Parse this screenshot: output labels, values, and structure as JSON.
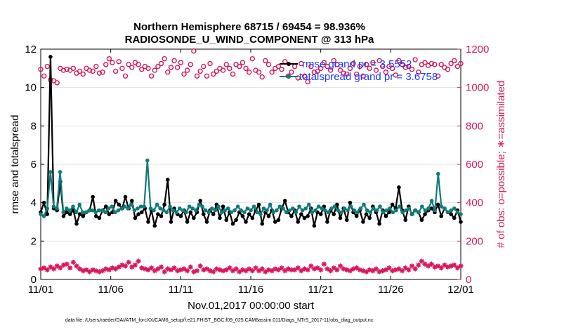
{
  "colors": {
    "rmse": "#000000",
    "spread": "#117a7a",
    "obs": "#d6185c",
    "grid": "#e3e3e3",
    "legend_text": "#1a3cff"
  },
  "chart_data": {
    "type": "line",
    "title": "Northern Hemisphere 68715 / 69454 = 98.936%",
    "subtitle": "RADIOSONDE_U_WIND_COMPONENT @ 313 hPa",
    "xlabel": "Nov.01,2017 00:00:00 start",
    "ylabel_left": "rmse and totalspread",
    "ylabel_right": "# of obs: o=possible; ∗=assimilated",
    "x_ticks": [
      "11/01",
      "11/06",
      "11/11",
      "11/16",
      "11/21",
      "11/26",
      "12/01"
    ],
    "y_left_ticks": [
      "0",
      "2",
      "4",
      "6",
      "8",
      "10",
      "12"
    ],
    "y_right_ticks": [
      "0",
      "200",
      "400",
      "600",
      "800",
      "1000",
      "1200"
    ],
    "xlim": [
      0,
      30
    ],
    "ylim_left": [
      0,
      12
    ],
    "ylim_right": [
      0,
      1200
    ],
    "footnote": "data file: /Users/raeder/DAI/ATM_forcXX/CAM6_setup/f.e21.FHIST_BGC.f09_025.CAM6assim.011/Diags_NTrS_2017-11/obs_diag_output.nc",
    "legend": [
      {
        "label": "rmse grand pr = 3.5552",
        "series": "rmse"
      },
      {
        "label": "totalspread grand pr = 3.6758",
        "series": "totalspread"
      }
    ],
    "series": [
      {
        "name": "rmse",
        "axis": "left",
        "marker": "filled-circle",
        "values": [
          3.5,
          4.0,
          3.4,
          11.6,
          3.7,
          3.6,
          5.1,
          3.3,
          3.5,
          3.4,
          3.6,
          2.9,
          3.4,
          3.3,
          3.5,
          3.6,
          4.3,
          3.3,
          3.2,
          3.6,
          3.8,
          3.4,
          3.5,
          4.1,
          3.9,
          3.7,
          4.3,
          3.7,
          4.1,
          3.2,
          3.4,
          3.5,
          3.7,
          3.0,
          3.6,
          2.8,
          3.4,
          3.3,
          3.9,
          5.2,
          3.0,
          3.7,
          3.4,
          3.3,
          3.6,
          3.0,
          3.5,
          3.2,
          3.5,
          4.1,
          3.4,
          3.0,
          3.6,
          3.4,
          3.9,
          3.2,
          3.8,
          3.1,
          3.5,
          2.9,
          3.1,
          3.5,
          3.3,
          3.0,
          3.4,
          3.2,
          3.6,
          3.9,
          2.9,
          3.5,
          3.3,
          3.6,
          3.0,
          3.1,
          3.7,
          4.1,
          3.5,
          3.3,
          3.6,
          3.0,
          3.4,
          3.2,
          3.3,
          3.7,
          2.8,
          3.5,
          3.4,
          3.8,
          3.0,
          3.6,
          3.4,
          3.9,
          3.2,
          3.7,
          3.1,
          4.0,
          3.5,
          3.3,
          3.6,
          3.0,
          3.4,
          3.2,
          3.8,
          3.5,
          2.9,
          3.6,
          3.3,
          3.5,
          3.9,
          3.7,
          4.8,
          3.6,
          3.1,
          3.8,
          3.4,
          3.6,
          3.5,
          3.1,
          3.4,
          3.6,
          3.7,
          3.5,
          3.9,
          3.3,
          3.7,
          3.5,
          3.4,
          3.2,
          3.6,
          3.0
        ]
      },
      {
        "name": "totalspread",
        "axis": "left",
        "marker": "filled-circle",
        "values": [
          3.4,
          3.3,
          3.7,
          5.6,
          3.8,
          3.7,
          5.6,
          3.5,
          3.7,
          3.6,
          3.8,
          3.5,
          3.9,
          3.5,
          3.5,
          3.6,
          3.6,
          3.5,
          3.6,
          3.6,
          3.5,
          3.7,
          3.8,
          3.5,
          3.6,
          3.7,
          3.8,
          3.7,
          3.9,
          3.6,
          3.7,
          3.8,
          3.8,
          6.2,
          3.7,
          3.6,
          3.9,
          3.7,
          3.6,
          3.5,
          3.8,
          3.6,
          3.5,
          3.7,
          3.6,
          3.5,
          3.8,
          3.7,
          3.6,
          3.9,
          3.8,
          3.6,
          3.5,
          3.7,
          3.6,
          3.8,
          3.5,
          3.6,
          3.7,
          3.5,
          3.6,
          3.8,
          3.6,
          3.5,
          3.7,
          3.6,
          3.8,
          3.5,
          3.4,
          3.7,
          3.6,
          3.9,
          3.5,
          3.6,
          3.8,
          3.7,
          3.5,
          3.6,
          3.7,
          3.5,
          3.8,
          3.6,
          3.7,
          3.9,
          3.5,
          3.6,
          3.8,
          3.7,
          3.6,
          3.5,
          3.7,
          3.8,
          3.6,
          3.5,
          3.7,
          3.6,
          3.8,
          3.6,
          3.5,
          3.7,
          3.9,
          3.6,
          3.5,
          3.7,
          3.6,
          3.8,
          3.5,
          3.6,
          3.7,
          3.5,
          3.6,
          3.8,
          3.5,
          3.6,
          3.7,
          3.4,
          3.6,
          3.5,
          3.8,
          3.6,
          3.7,
          4.1,
          3.6,
          5.5,
          3.8,
          3.7,
          3.5,
          3.6,
          3.7,
          3.5,
          3.4
        ]
      },
      {
        "name": "obs_possible",
        "axis": "right",
        "marker": "open-circle",
        "values": [
          1095,
          1060,
          1110,
          1040,
          1035,
          1025,
          1100,
          1090,
          1095,
          1090,
          1100,
          1075,
          1085,
          1070,
          1100,
          1090,
          1085,
          1110,
          1075,
          1080,
          1120,
          1150,
          1130,
          1085,
          1135,
          1100,
          1060,
          1120,
          1105,
          1130,
          1120,
          1095,
          1110,
          1100,
          1060,
          1090,
          1110,
          1125,
          1150,
          1080,
          1105,
          1140,
          1105,
          1130,
          1070,
          1090,
          1120,
          1190,
          1060,
          1085,
          1110,
          1060,
          1125,
          1070,
          1085,
          1100,
          1090,
          1120,
          1100,
          1070,
          1120,
          1110,
          1130,
          1100,
          1080,
          1150,
          1090,
          1080,
          1055,
          1140,
          1120,
          1080,
          1100,
          1110,
          1095,
          1135,
          1060,
          1080,
          1110,
          1050,
          1125,
          1060,
          1030,
          1110,
          1080,
          1085,
          1100,
          1130,
          1110,
          1090,
          1140,
          1120,
          1090,
          1075,
          1070,
          1100,
          1125,
          1070,
          1110,
          1060,
          1120,
          1100,
          1130,
          1090,
          1140,
          1110,
          1080,
          1110,
          1100,
          1065,
          1140,
          1120,
          1105,
          1110,
          1095,
          1145,
          1080,
          1120,
          1130,
          1115,
          1125,
          1120,
          1060,
          1120,
          1105,
          1095,
          1125,
          1140,
          1110,
          1125
        ]
      },
      {
        "name": "obs_assimilated",
        "axis": "right",
        "marker": "asterisk",
        "values": [
          55,
          60,
          50,
          65,
          55,
          70,
          60,
          75,
          80,
          60,
          90,
          70,
          55,
          45,
          50,
          40,
          50,
          45,
          40,
          45,
          55,
          50,
          60,
          55,
          65,
          75,
          70,
          90,
          65,
          75,
          95,
          60,
          55,
          50,
          60,
          45,
          55,
          65,
          40,
          55,
          50,
          60,
          45,
          50,
          55,
          45,
          65,
          40,
          45,
          70,
          50,
          55,
          45,
          40,
          55,
          50,
          45,
          50,
          60,
          45,
          55,
          40,
          50,
          45,
          55,
          45,
          60,
          45,
          55,
          40,
          50,
          45,
          55,
          50,
          60,
          45,
          55,
          50,
          50,
          60,
          45,
          55,
          50,
          70,
          55,
          60,
          50,
          80,
          55,
          45,
          60,
          50,
          70,
          55,
          50,
          45,
          55,
          60,
          50,
          45,
          40,
          50,
          45,
          55,
          40,
          45,
          50,
          60,
          45,
          50,
          55,
          45,
          60,
          50,
          70,
          55,
          75,
          95,
          80,
          70,
          80,
          65,
          70,
          60,
          75,
          65,
          70,
          75,
          60,
          70
        ]
      }
    ]
  }
}
